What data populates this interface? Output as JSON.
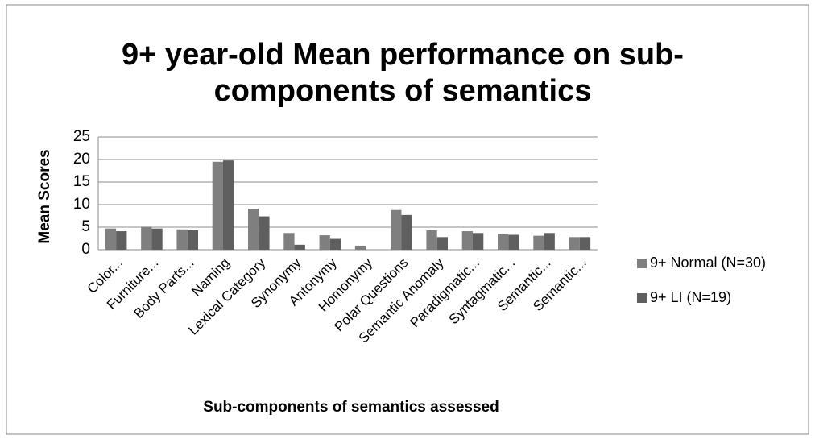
{
  "chart_data": {
    "type": "bar",
    "title": "9+ year-old Mean performance on sub-components of semantics",
    "title_lines": [
      "9+ year-old Mean performance on sub-",
      "components of semantics"
    ],
    "x_label": "Sub-components of semantics assessed",
    "y_label": "Mean Scores",
    "categories": [
      "Color...",
      "Furniture...",
      "Body Parts...",
      "Naming",
      "Lexical Category",
      "Synonymy",
      "Antonymy",
      "Homonymy",
      "Polar Questions",
      "Semantic Anomaly",
      "Paradigmatic...",
      "Syntagmatic...",
      "Semantic...",
      "Semantic..."
    ],
    "series": [
      {
        "name": "9+ Normal (N=30)",
        "color": "#7f7f7f",
        "values": [
          4.7,
          5.1,
          4.5,
          19.5,
          9.1,
          3.7,
          3.2,
          0.9,
          8.8,
          4.3,
          4.1,
          3.5,
          3.1,
          2.8
        ]
      },
      {
        "name": "9+ LI (N=19)",
        "color": "#5f5f5f",
        "values": [
          4.1,
          4.7,
          4.3,
          19.8,
          7.4,
          1.1,
          2.4,
          0,
          7.7,
          2.8,
          3.7,
          3.3,
          3.7,
          2.8
        ]
      }
    ],
    "ylim": [
      0,
      25
    ],
    "yticks": [
      0,
      5,
      10,
      15,
      20,
      25
    ],
    "grid": true,
    "legend": "right"
  }
}
